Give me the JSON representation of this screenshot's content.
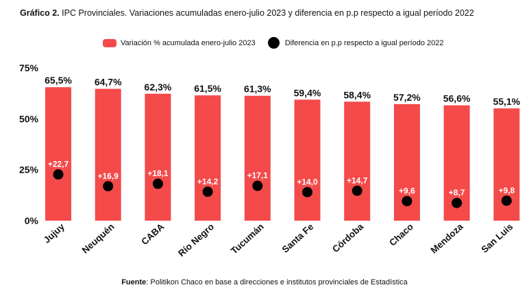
{
  "title": {
    "prefix": "Gráfico 2.",
    "text": "IPC Provinciales. Variaciones acumuladas enero-julio 2023 y diferencia en p.p respecto a igual período 2022"
  },
  "legend": {
    "bar_label": "Variación % acumulada enero-julio 2023",
    "dot_label": "Diferencia en p.p respecto a igual período 2022"
  },
  "source": {
    "prefix": "Fuente",
    "text": ": Politikon Chaco en base a direcciones e institutos provinciales de Estadística"
  },
  "colors": {
    "bar": "#f44a4a",
    "dot": "#000000",
    "dot_label": "#ffffff"
  },
  "chart_data": {
    "type": "bar",
    "categories": [
      "Jujuy",
      "Neuquén",
      "CABA",
      "Río Negro",
      "Tucumán",
      "Santa Fe",
      "Córdoba",
      "Chaco",
      "Mendoza",
      "San Luis"
    ],
    "series": [
      {
        "name": "Variación % acumulada enero-julio 2023",
        "kind": "bar",
        "values": [
          65.5,
          64.7,
          62.3,
          61.5,
          61.3,
          59.4,
          58.4,
          57.2,
          56.6,
          55.1
        ],
        "labels": [
          "65,5%",
          "64,7%",
          "62,3%",
          "61,5%",
          "61,3%",
          "59,4%",
          "58,4%",
          "57,2%",
          "56,6%",
          "55,1%"
        ]
      },
      {
        "name": "Diferencia en p.p respecto a igual período 2022",
        "kind": "scatter",
        "values": [
          22.7,
          16.9,
          18.1,
          14.2,
          17.1,
          14.0,
          14.7,
          9.6,
          8.7,
          9.8
        ],
        "labels": [
          "+22,7",
          "+16,9",
          "+18,1",
          "+14,2",
          "+17,1",
          "+14,0",
          "+14,7",
          "+9,6",
          "+8,7",
          "+9,8"
        ]
      }
    ],
    "y_ticks": [
      0,
      25,
      50,
      75
    ],
    "y_tick_labels": [
      "0%",
      "25%",
      "50%",
      "75%"
    ],
    "ylim": [
      0,
      75
    ],
    "xlabel": "",
    "ylabel": "",
    "grid": false,
    "legend_position": "top-center"
  }
}
